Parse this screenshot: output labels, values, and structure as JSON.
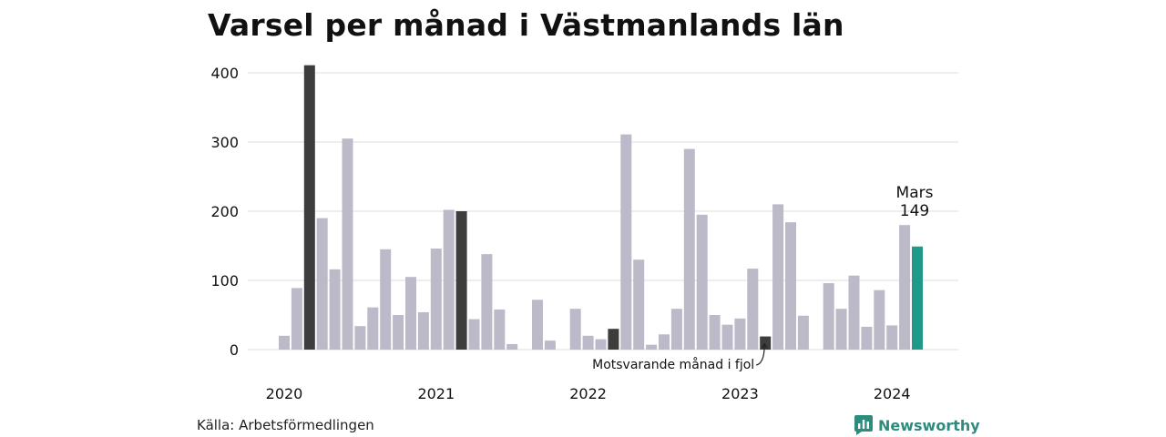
{
  "chart_data": {
    "type": "bar",
    "title": "Varsel per månad i Västmanlands län",
    "xlabel": "",
    "ylabel": "",
    "ylim": [
      0,
      420
    ],
    "yticks": [
      0,
      100,
      200,
      300,
      400
    ],
    "grid": true,
    "year_labels": [
      "2020",
      "2021",
      "2022",
      "2023",
      "2024"
    ],
    "categories": [
      "2020-01",
      "2020-02",
      "2020-03",
      "2020-04",
      "2020-05",
      "2020-06",
      "2020-07",
      "2020-08",
      "2020-09",
      "2020-10",
      "2020-11",
      "2020-12",
      "2021-01",
      "2021-02",
      "2021-03",
      "2021-04",
      "2021-05",
      "2021-06",
      "2021-07",
      "2021-08",
      "2021-09",
      "2021-10",
      "2021-11",
      "2021-12",
      "2022-01",
      "2022-02",
      "2022-03",
      "2022-04",
      "2022-05",
      "2022-06",
      "2022-07",
      "2022-08",
      "2022-09",
      "2022-10",
      "2022-11",
      "2022-12",
      "2023-01",
      "2023-02",
      "2023-03",
      "2023-04",
      "2023-05",
      "2023-06",
      "2023-07",
      "2023-08",
      "2023-09",
      "2023-10",
      "2023-11",
      "2023-12",
      "2024-01",
      "2024-02",
      "2024-03"
    ],
    "values": [
      20,
      89,
      411,
      190,
      116,
      305,
      34,
      61,
      145,
      50,
      105,
      54,
      146,
      202,
      200,
      44,
      138,
      58,
      8,
      0,
      72,
      13,
      0,
      59,
      20,
      15,
      30,
      311,
      130,
      7,
      22,
      59,
      290,
      195,
      50,
      36,
      45,
      117,
      19,
      210,
      184,
      49,
      0,
      96,
      59,
      107,
      33,
      86,
      35,
      180,
      149
    ],
    "highlight_march": [
      "2020-03",
      "2021-03",
      "2022-03",
      "2023-03"
    ],
    "current": "2024-03",
    "colors": {
      "bar": "#bcbac8",
      "march": "#3d3d3d",
      "current": "#1f9a8a",
      "grid": "#dcdcdc",
      "text": "#111111"
    },
    "current_label": {
      "month": "Mars",
      "value": "149"
    },
    "annotation": "Motsvarande månad i fjol"
  },
  "source": "Källa: Arbetsförmedlingen",
  "brand": {
    "name": "Newsworthy",
    "icon": "newsworthy-logo-icon",
    "color": "#2f8b7e"
  }
}
